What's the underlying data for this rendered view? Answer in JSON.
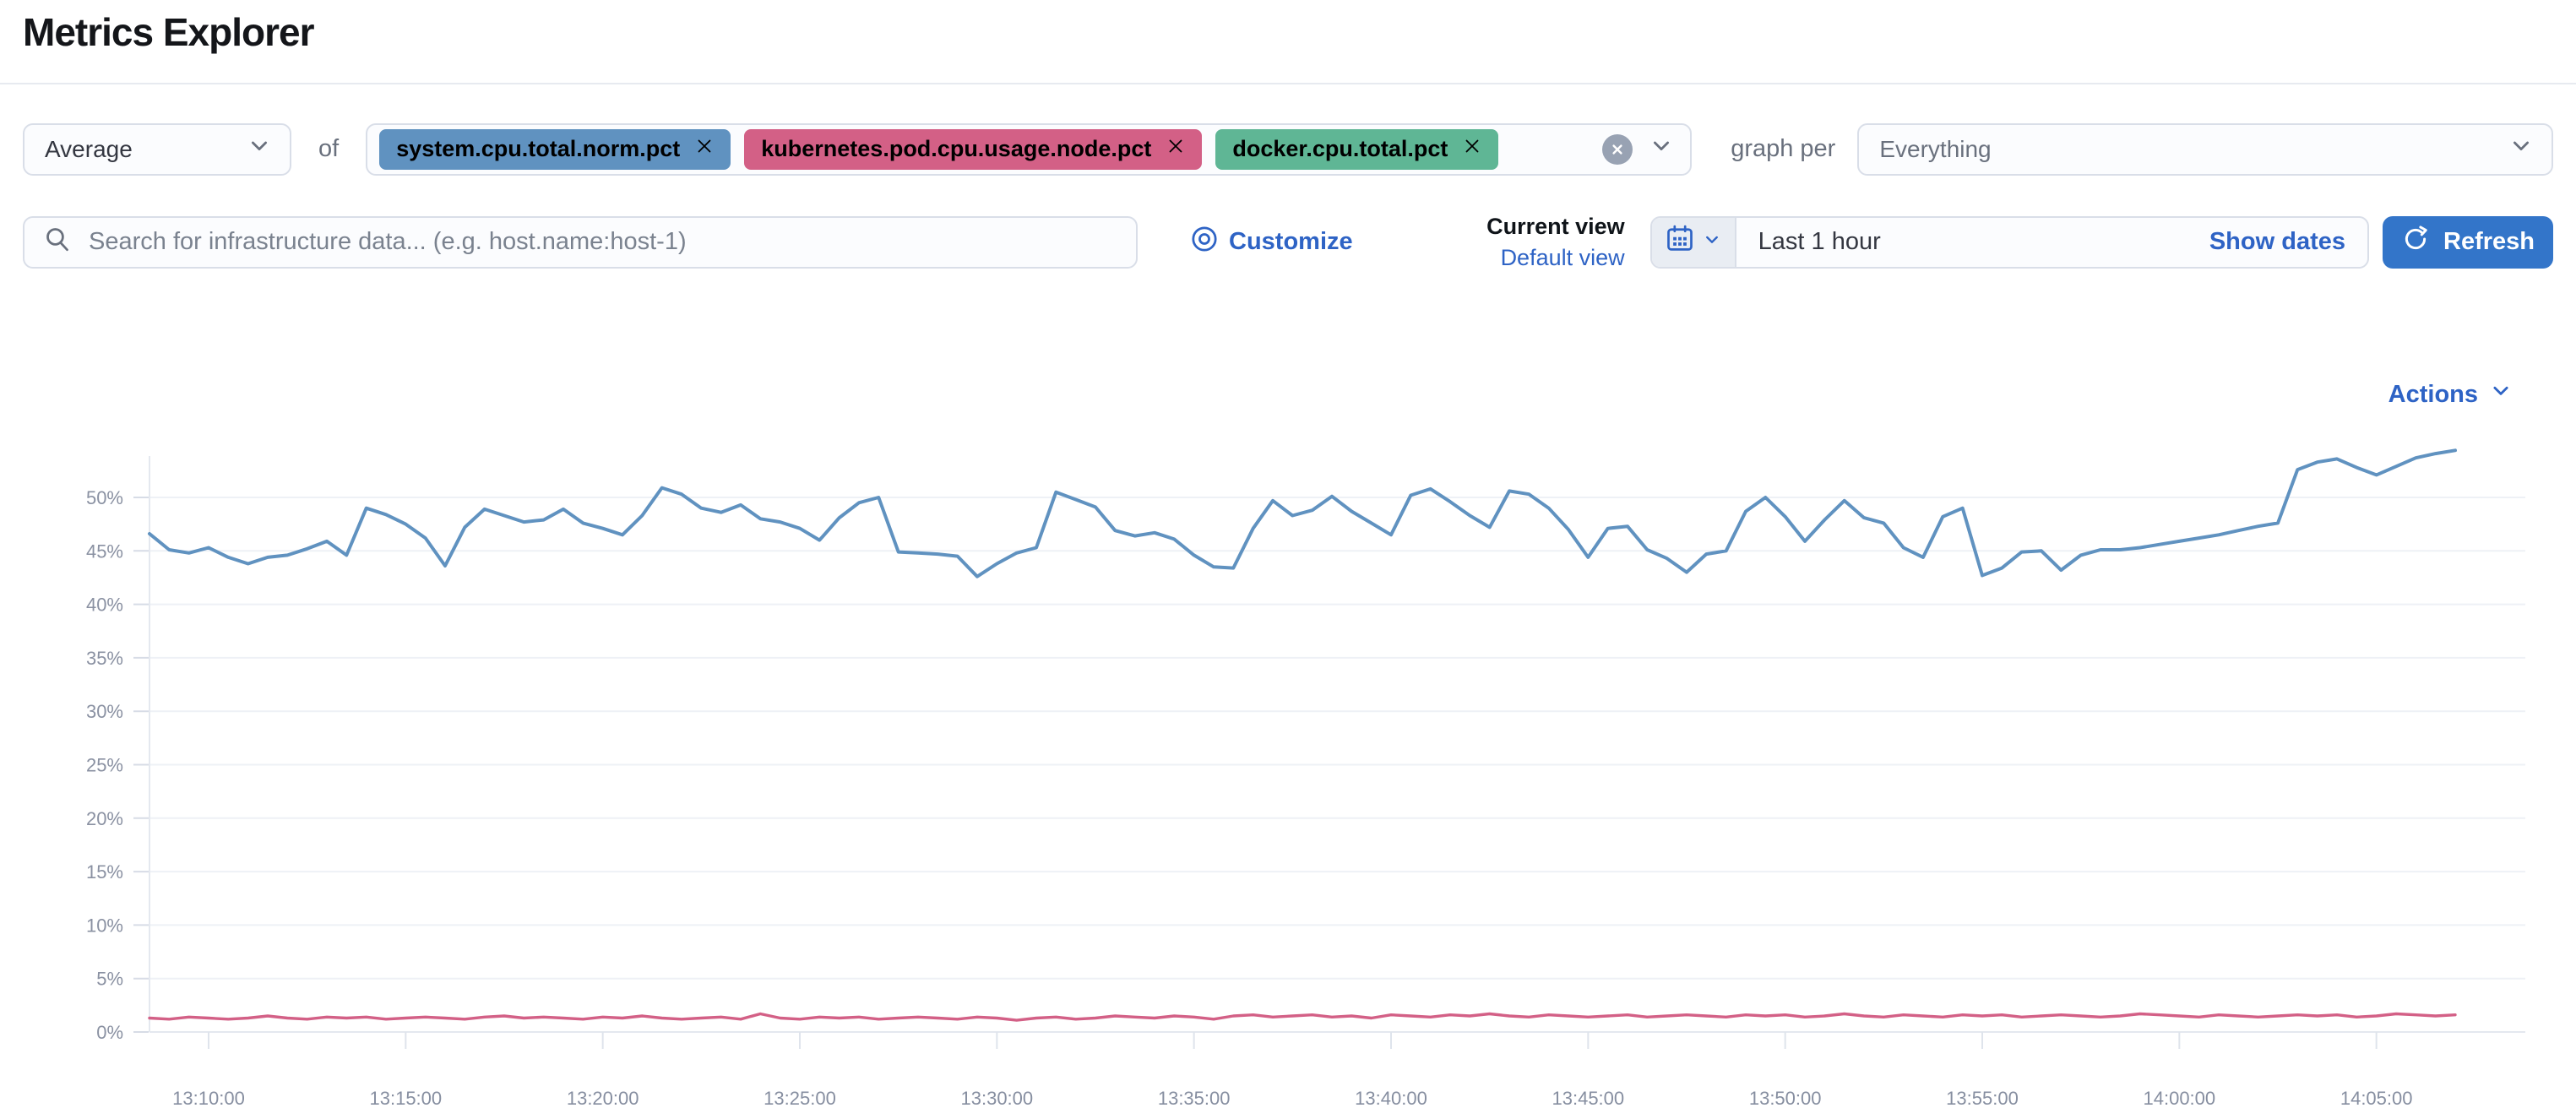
{
  "page": {
    "title": "Metrics Explorer"
  },
  "theme": {
    "link_blue": "#2e63c5",
    "button_blue": "#3375c9",
    "series_blue": "#6092C0",
    "series_pink": "#D36086",
    "series_green": "#54B399"
  },
  "toolbar": {
    "aggregation": {
      "value": "Average"
    },
    "of_label": "of",
    "metrics": [
      {
        "label": "system.cpu.total.norm.pct",
        "color": "#6092C0"
      },
      {
        "label": "kubernetes.pod.cpu.usage.node.pct",
        "color": "#D36086"
      },
      {
        "label": "docker.cpu.total.pct",
        "color": "#5FB695"
      }
    ],
    "graph_per_label": "graph per",
    "group_by": {
      "value": "Everything"
    }
  },
  "search": {
    "placeholder": "Search for infrastructure data... (e.g. host.name:host-1)"
  },
  "view_controls": {
    "customize_label": "Customize",
    "current_view_label": "Current view",
    "view_name": "Default view"
  },
  "datepicker": {
    "value": "Last 1 hour",
    "show_dates_label": "Show dates",
    "refresh_label": "Refresh"
  },
  "chart_header": {
    "actions_label": "Actions"
  },
  "chart_data": {
    "type": "line",
    "title": "",
    "xlabel": "",
    "ylabel": "",
    "grid": "horizontal",
    "legend": "none",
    "ylim": [
      0,
      54
    ],
    "x_start": "13:08:30",
    "x_interval_seconds": 30,
    "x_tick_labels": [
      "13:10:00",
      "13:15:00",
      "13:20:00",
      "13:25:00",
      "13:30:00",
      "13:35:00",
      "13:40:00",
      "13:45:00",
      "13:50:00",
      "13:55:00",
      "14:00:00",
      "14:05:00"
    ],
    "y_tick_labels": [
      "0%",
      "5%",
      "10%",
      "15%",
      "20%",
      "25%",
      "30%",
      "35%",
      "40%",
      "45%",
      "50%"
    ],
    "series": [
      {
        "name": "system.cpu.total.norm.pct (avg)",
        "color": "#6092C0",
        "unit": "%",
        "values": [
          46.6,
          45.1,
          44.8,
          45.3,
          44.4,
          43.8,
          44.4,
          44.6,
          45.2,
          45.9,
          44.6,
          49.0,
          48.4,
          47.5,
          46.2,
          43.6,
          47.2,
          48.9,
          48.3,
          47.7,
          47.9,
          48.9,
          47.6,
          47.1,
          46.5,
          48.3,
          50.9,
          50.3,
          49.0,
          48.6,
          49.3,
          48.0,
          47.7,
          47.1,
          46.0,
          48.1,
          49.5,
          50.0,
          44.9,
          44.8,
          44.7,
          44.5,
          42.6,
          43.8,
          44.8,
          45.3,
          50.5,
          49.8,
          49.1,
          46.9,
          46.4,
          46.7,
          46.1,
          44.6,
          43.5,
          43.4,
          47.1,
          49.7,
          48.3,
          48.8,
          50.1,
          48.7,
          47.6,
          46.5,
          50.2,
          50.8,
          49.6,
          48.3,
          47.2,
          50.6,
          50.3,
          49.0,
          47.0,
          44.4,
          47.1,
          47.3,
          45.1,
          44.3,
          43.0,
          44.7,
          45.0,
          48.7,
          50.0,
          48.2,
          45.9,
          47.9,
          49.7,
          48.1,
          47.6,
          45.3,
          44.4,
          48.2,
          49.0,
          42.7,
          43.4,
          44.9,
          45.0,
          43.2,
          44.6,
          45.1,
          45.1,
          45.3,
          45.6,
          45.9,
          46.2,
          46.5,
          46.9,
          47.3,
          47.6,
          52.6,
          53.3,
          53.6,
          52.8,
          52.1,
          52.9,
          53.7,
          54.1,
          54.4
        ]
      },
      {
        "name": "kubernetes.pod.cpu.usage.node.pct (avg)",
        "color": "#D36086",
        "unit": "%",
        "values": [
          1.3,
          1.2,
          1.4,
          1.3,
          1.2,
          1.3,
          1.5,
          1.3,
          1.2,
          1.4,
          1.3,
          1.4,
          1.2,
          1.3,
          1.4,
          1.3,
          1.2,
          1.4,
          1.5,
          1.3,
          1.4,
          1.3,
          1.2,
          1.4,
          1.3,
          1.5,
          1.3,
          1.2,
          1.3,
          1.4,
          1.2,
          1.7,
          1.3,
          1.2,
          1.4,
          1.3,
          1.4,
          1.2,
          1.3,
          1.4,
          1.3,
          1.2,
          1.4,
          1.3,
          1.1,
          1.3,
          1.4,
          1.2,
          1.3,
          1.5,
          1.4,
          1.3,
          1.5,
          1.4,
          1.2,
          1.5,
          1.6,
          1.4,
          1.5,
          1.6,
          1.4,
          1.5,
          1.3,
          1.6,
          1.5,
          1.4,
          1.6,
          1.5,
          1.7,
          1.5,
          1.4,
          1.6,
          1.5,
          1.4,
          1.5,
          1.6,
          1.4,
          1.5,
          1.6,
          1.5,
          1.4,
          1.6,
          1.5,
          1.6,
          1.4,
          1.5,
          1.7,
          1.5,
          1.4,
          1.6,
          1.5,
          1.4,
          1.6,
          1.5,
          1.6,
          1.4,
          1.5,
          1.6,
          1.5,
          1.4,
          1.5,
          1.7,
          1.6,
          1.5,
          1.4,
          1.6,
          1.5,
          1.4,
          1.5,
          1.6,
          1.5,
          1.6,
          1.4,
          1.5,
          1.7,
          1.6,
          1.5,
          1.6
        ]
      }
    ]
  }
}
